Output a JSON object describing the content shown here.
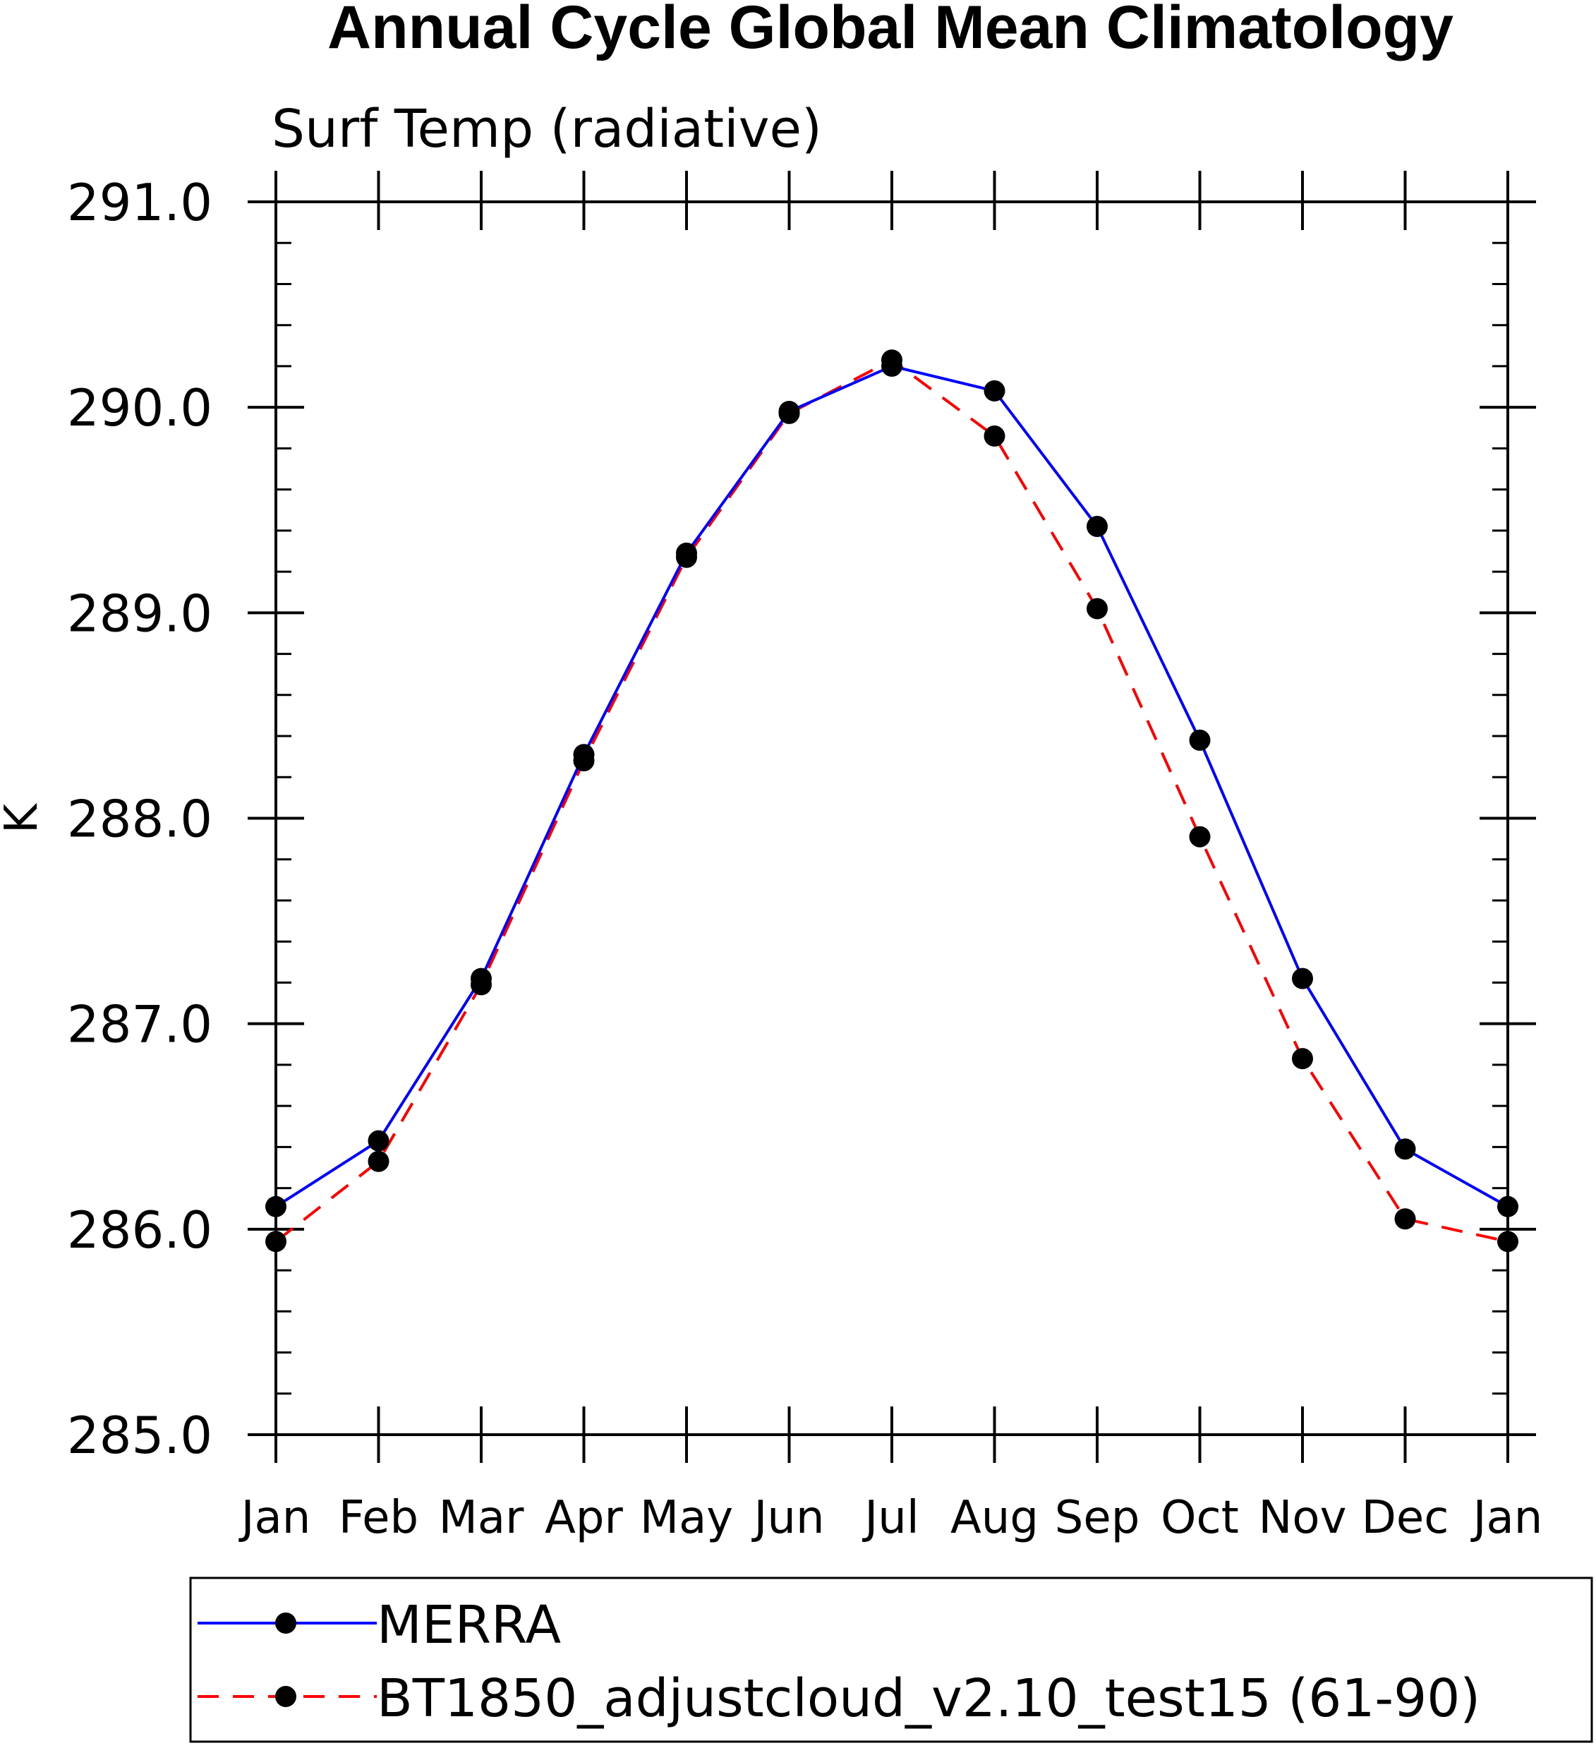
{
  "chart_data": {
    "type": "line",
    "title": "Annual Cycle Global Mean Climatology",
    "subtitle": "Surf Temp (radiative)",
    "xlabel": "",
    "ylabel": "K",
    "categories": [
      "Jan",
      "Feb",
      "Mar",
      "Apr",
      "May",
      "Jun",
      "Jul",
      "Aug",
      "Sep",
      "Oct",
      "Nov",
      "Dec",
      "Jan"
    ],
    "ylim": [
      285.0,
      291.0
    ],
    "yticks": [
      "285.0",
      "286.0",
      "287.0",
      "288.0",
      "289.0",
      "290.0",
      "291.0"
    ],
    "grid": false,
    "legend_position": "bottom",
    "series": [
      {
        "name": "MERRA",
        "color": "#0000ff",
        "line_style": "solid",
        "marker": "filled-circle",
        "values": [
          286.11,
          286.43,
          287.22,
          288.31,
          289.29,
          289.98,
          290.2,
          290.08,
          289.42,
          288.38,
          287.22,
          286.39,
          286.11
        ]
      },
      {
        "name": "BT1850_adjustcloud_v2.10_test15 (61-90)",
        "color": "#ff0000",
        "line_style": "dashed",
        "marker": "filled-circle",
        "values": [
          285.94,
          286.33,
          287.19,
          288.28,
          289.27,
          289.97,
          290.23,
          289.86,
          289.02,
          287.91,
          286.83,
          286.05,
          285.94
        ]
      }
    ]
  }
}
